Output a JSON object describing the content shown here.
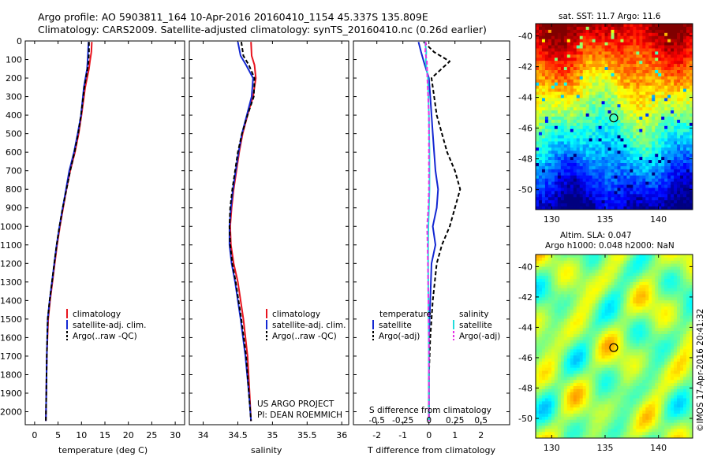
{
  "header": {
    "line1": "Argo profile: AO 5903811_164 10-Apr-2016 20160410_1154 45.337S 135.809E",
    "line2": "Climatology: CARS2009. Satellite-adjusted climatology: synTS_20160410.nc (0.26d earlier)"
  },
  "colors": {
    "climatology": "#e8141e",
    "satellite": "#1428d2",
    "argo": "#000000",
    "salinity_satellite": "#22dcdc",
    "salinity_argo": "#e632e6"
  },
  "depth_axis": {
    "ticks": [
      "0",
      "100",
      "200",
      "300",
      "400",
      "500",
      "600",
      "700",
      "800",
      "900",
      "1000",
      "1100",
      "1200",
      "1300",
      "1400",
      "1500",
      "1600",
      "1700",
      "1800",
      "1900",
      "2000"
    ],
    "range": [
      0,
      2070
    ]
  },
  "credits": {
    "line1": "US ARGO PROJECT",
    "line2": "PI: DEAN ROEMMICH"
  },
  "maps": {
    "sst_title": "sat. SST: 11.7 Argo: 11.6",
    "sla_title1": "Altim. SLA: 0.047",
    "sla_title2": "Argo h1000: 0.048 h2000: NaN",
    "lon_ticks": [
      "130",
      "135",
      "140"
    ],
    "lat_ticks": [
      "-40",
      "-42",
      "-44",
      "-46",
      "-48",
      "-50"
    ],
    "lon_range": [
      128.5,
      143.2
    ],
    "lat_range": [
      -51.3,
      -39.2
    ],
    "argo_position": {
      "lat": -45.337,
      "lon": 135.809
    },
    "colorbar": false
  },
  "timestamp": "©IMOS 17-Apr-2016 20:41:32",
  "chart_data": [
    {
      "type": "line",
      "panel": "temperature",
      "xlabel": "temperature (deg C)",
      "ylabel": "",
      "xlim": [
        -2,
        32
      ],
      "ylim": [
        2070,
        0
      ],
      "xticks": [
        "0",
        "5",
        "10",
        "15",
        "20",
        "25",
        "30"
      ],
      "legend": {
        "position": "lower-center",
        "entries": [
          "climatology",
          "satellite-adj. clim.",
          "Argo(..raw -QC)"
        ]
      },
      "series": [
        {
          "name": "climatology",
          "color": "#e8141e",
          "x": [
            12.2,
            12.1,
            11.8,
            11.6,
            10.8,
            10.0,
            9.4,
            8.6,
            7.6,
            6.8,
            6.1,
            5.4,
            4.8,
            4.3,
            3.8,
            3.3,
            2.9,
            2.6,
            2.5,
            2.4
          ],
          "y": [
            5,
            60,
            110,
            150,
            250,
            400,
            500,
            600,
            700,
            800,
            900,
            1000,
            1100,
            1200,
            1300,
            1400,
            1500,
            1700,
            1900,
            2050
          ]
        },
        {
          "name": "satellite-adj. clim.",
          "color": "#1428d2",
          "x": [
            11.5,
            11.4,
            11.3,
            11.2,
            10.5,
            9.9,
            9.2,
            8.4,
            7.4,
            6.7,
            6.0,
            5.3,
            4.7,
            4.2,
            3.7,
            3.2,
            2.8,
            2.6,
            2.5,
            2.4
          ],
          "y": [
            5,
            60,
            110,
            150,
            250,
            400,
            500,
            600,
            700,
            800,
            900,
            1000,
            1100,
            1200,
            1300,
            1400,
            1500,
            1700,
            1900,
            2050
          ]
        },
        {
          "name": "Argo(..raw -QC)",
          "color": "#000000",
          "x": [
            11.6,
            11.6,
            11.5,
            11.3,
            10.6,
            9.9,
            9.3,
            8.5,
            7.6,
            6.8,
            6.0,
            5.3,
            4.7,
            4.2,
            3.7,
            3.2,
            2.8,
            2.6,
            2.5,
            2.4
          ],
          "y": [
            5,
            60,
            110,
            150,
            250,
            400,
            500,
            600,
            700,
            800,
            900,
            1000,
            1100,
            1200,
            1300,
            1400,
            1500,
            1700,
            1900,
            2050
          ]
        }
      ]
    },
    {
      "type": "line",
      "panel": "salinity",
      "xlabel": "salinity",
      "ylabel": "",
      "xlim": [
        33.8,
        36.1
      ],
      "ylim": [
        2070,
        0
      ],
      "xticks": [
        "34",
        "34.5",
        "35",
        "35.5",
        "36"
      ],
      "legend": {
        "position": "lower-center",
        "entries": [
          "climatology",
          "satellite-adj. clim.",
          "Argo(..raw -QC)"
        ]
      },
      "series": [
        {
          "name": "climatology",
          "color": "#e8141e",
          "x": [
            34.69,
            34.7,
            34.74,
            34.76,
            34.72,
            34.64,
            34.57,
            34.52,
            34.48,
            34.44,
            34.41,
            34.39,
            34.4,
            34.44,
            34.5,
            34.58,
            34.64,
            34.67,
            34.69
          ],
          "y": [
            5,
            80,
            130,
            200,
            300,
            400,
            500,
            600,
            700,
            800,
            900,
            1000,
            1100,
            1200,
            1300,
            1500,
            1700,
            1900,
            2050
          ]
        },
        {
          "name": "satellite-adj. clim.",
          "color": "#1428d2",
          "x": [
            34.5,
            34.54,
            34.62,
            34.72,
            34.7,
            34.63,
            34.56,
            34.51,
            34.47,
            34.43,
            34.4,
            34.38,
            34.38,
            34.41,
            34.46,
            34.54,
            34.61,
            34.66,
            34.69
          ],
          "y": [
            5,
            80,
            130,
            200,
            300,
            400,
            500,
            600,
            700,
            800,
            900,
            1000,
            1100,
            1200,
            1300,
            1500,
            1700,
            1900,
            2050
          ]
        },
        {
          "name": "Argo(..raw -QC)",
          "color": "#000000",
          "x": [
            34.55,
            34.58,
            34.66,
            34.74,
            34.73,
            34.64,
            34.56,
            34.5,
            34.46,
            34.42,
            34.39,
            34.38,
            34.39,
            34.42,
            34.47,
            34.55,
            34.62,
            34.66,
            34.69
          ],
          "y": [
            5,
            80,
            130,
            200,
            300,
            400,
            500,
            600,
            700,
            800,
            900,
            1000,
            1100,
            1200,
            1300,
            1500,
            1700,
            1900,
            2050
          ]
        }
      ]
    },
    {
      "type": "line",
      "panel": "differences",
      "xlabel": "T difference from climatology",
      "xlabel_top": "S difference from climatology",
      "xlim": [
        -2.9,
        3.1
      ],
      "ylim": [
        2070,
        0
      ],
      "xticks": [
        "-2",
        "-1",
        "0",
        "1",
        "2"
      ],
      "xticks_top": [
        "-0.5",
        "-0.25",
        "0",
        "0.25",
        "0.5"
      ],
      "legend": {
        "position": "lower-center",
        "headers": [
          "temperature",
          "salinity"
        ],
        "entries": [
          "satellite",
          "Argo(-adj)",
          "satellite",
          "Argo(-adj)"
        ]
      },
      "series": [
        {
          "name": "satellite",
          "quantity": "temperature",
          "color": "#1428d2",
          "x": [
            -0.4,
            -0.3,
            -0.2,
            0.0,
            0.05,
            0.1,
            0.15,
            0.2,
            0.25,
            0.35,
            0.3,
            0.15,
            0.25,
            0.1,
            0.05,
            0.0,
            0.0,
            0.0
          ],
          "y": [
            5,
            60,
            110,
            200,
            300,
            400,
            500,
            600,
            700,
            800,
            900,
            1000,
            1100,
            1200,
            1400,
            1600,
            1800,
            2050
          ]
        },
        {
          "name": "Argo(-adj)",
          "quantity": "temperature",
          "color": "#000000",
          "x": [
            -0.2,
            0.2,
            0.8,
            0.1,
            0.2,
            0.3,
            0.5,
            0.7,
            1.0,
            1.2,
            1.0,
            0.8,
            0.5,
            0.3,
            0.15,
            0.05,
            0.0,
            0.0
          ],
          "y": [
            5,
            60,
            110,
            200,
            300,
            400,
            500,
            600,
            700,
            800,
            900,
            1000,
            1100,
            1200,
            1400,
            1600,
            1800,
            2050
          ]
        },
        {
          "name": "satellite",
          "quantity": "salinity",
          "color": "#22dcdc",
          "x": [
            -0.15,
            -0.1,
            -0.12,
            -0.04,
            -0.02,
            0.0,
            0.01,
            0.02,
            0.02,
            0.02,
            0.0,
            -0.02,
            -0.03,
            -0.03,
            -0.02,
            -0.01,
            0.0,
            0.0
          ],
          "y": [
            5,
            60,
            110,
            200,
            300,
            400,
            500,
            600,
            700,
            800,
            900,
            1000,
            1100,
            1200,
            1400,
            1600,
            1800,
            2050
          ]
        },
        {
          "name": "Argo(-adj)",
          "quantity": "salinity",
          "color": "#e632e6",
          "x": [
            -0.12,
            -0.14,
            -0.08,
            -0.06,
            -0.03,
            0.0,
            0.0,
            0.0,
            0.0,
            0.0,
            -0.02,
            -0.07,
            -0.05,
            -0.04,
            -0.02,
            0.0,
            0.0,
            0.0
          ],
          "y": [
            5,
            60,
            110,
            200,
            300,
            400,
            500,
            600,
            700,
            800,
            900,
            1000,
            1100,
            1200,
            1400,
            1600,
            1800,
            2050
          ]
        }
      ]
    }
  ]
}
